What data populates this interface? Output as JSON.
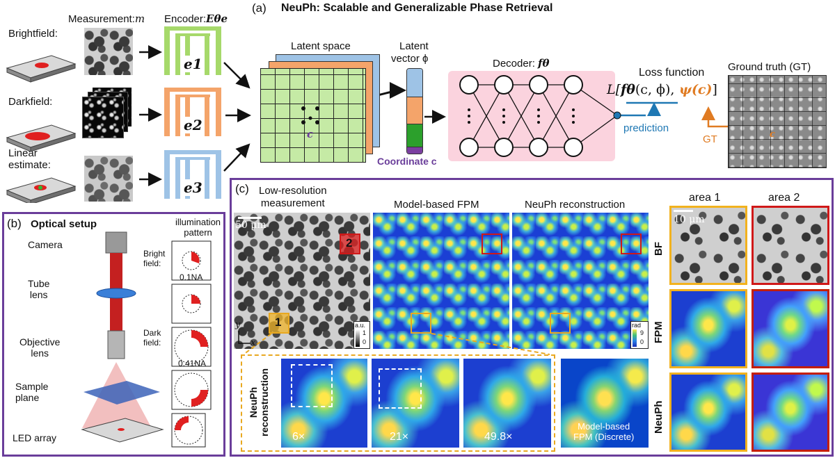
{
  "panel_a": {
    "tag": "(a)",
    "title": "NeuPh: Scalable and Generalizable Phase Retrieval",
    "measurement_label": "Measurement:",
    "measurement_symbol": "m",
    "encoder_label": "Encoder:",
    "encoder_symbol": "Eθe",
    "rows": [
      {
        "label": "Brightfield:",
        "encoder": "e1"
      },
      {
        "label": "Darkfield:",
        "encoder": "e2"
      },
      {
        "label": "Linear\nestimate:",
        "encoder": "e3"
      }
    ],
    "latent_space": "Latent space",
    "latent_vector_1": "Latent",
    "latent_vector_2": "vector ϕ",
    "coordinate_point": "c",
    "coordinate_label": "Coordinate c",
    "decoder_label": "Decoder:",
    "decoder_symbol": "fθ",
    "loss_title": "Loss function",
    "loss_formula_start": "L[",
    "loss_f": "fθ",
    "loss_args": "(c, ϕ),",
    "loss_psi": " ψ(c)",
    "loss_end": "]",
    "prediction": "prediction",
    "gt_arrow_label": "GT",
    "gt_title": "Ground truth (GT)",
    "gt_point": "c",
    "colors": {
      "purple": "#6a3d9a",
      "blue": "#1f78b4",
      "orange": "#e07b22",
      "green_enc": "#a6d96a",
      "orange_enc": "#f4a46a",
      "blue_enc": "#9ec3e6"
    }
  },
  "panel_b": {
    "tag": "(b)",
    "title": "Optical setup",
    "illumination_title": "illumination\npattern",
    "components": [
      "Camera",
      "Tube\nlens",
      "Objective\nlens",
      "Sample\nplane",
      "LED array"
    ],
    "bright_field": "Bright\nfield:",
    "dark_field": "Dark\nfield:",
    "na_1": "0.1NA",
    "na_2": "0.41NA"
  },
  "panel_c": {
    "tag": "(c)",
    "col_titles": [
      "Low-resolution\nmeasurement",
      "Model-based FPM",
      "NeuPh reconstruction"
    ],
    "scale_bar": "50 μm",
    "area_marker_1": "1",
    "area_marker_2": "2",
    "colorbar_au": "a.u.",
    "colorbar_au_max": "1",
    "colorbar_au_min": "0",
    "colorbar_rad": "rad",
    "colorbar_rad_max": "9",
    "colorbar_rad_min": "0",
    "axis_y": "y",
    "axis_x": "x",
    "zoom_row_label": "NeuPh\nreconstruction",
    "zooms": [
      "6×",
      "21×",
      "49.8×"
    ],
    "discrete_label": "Model-based\nFPM (Discrete)",
    "area_titles": [
      "area 1",
      "area 2"
    ],
    "row_labels": [
      "BF",
      "FPM",
      "NeuPh"
    ],
    "area_scale": "10 μm"
  }
}
